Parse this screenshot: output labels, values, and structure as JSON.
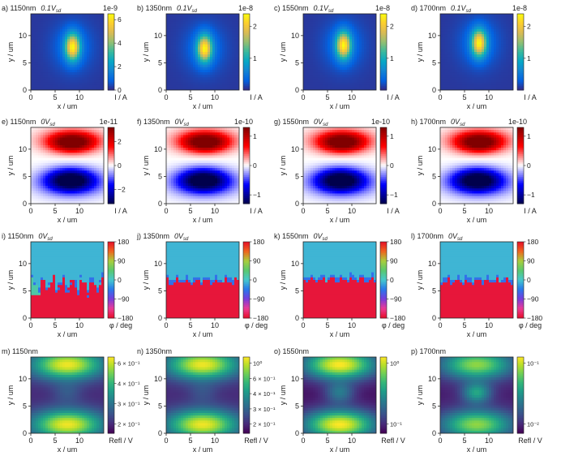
{
  "chart_data": {
    "type": "heatmap",
    "rows": [
      {
        "quantity": "photocurrent_magnitude",
        "colormap": "parula",
        "cbar_label": "I / A",
        "panels": [
          {
            "letter": "a)",
            "wavelength": "1150nm",
            "bias": "0.1V",
            "bias_sub": "sd",
            "exponent": "1e-9",
            "ticks": [
              "6",
              "4",
              "2",
              "0"
            ],
            "vmin": 0,
            "vmax": 6.5
          },
          {
            "letter": "b)",
            "wavelength": "1350nm",
            "bias": "0.1V",
            "bias_sub": "sd",
            "exponent": "1e-8",
            "ticks": [
              "2",
              "1"
            ],
            "vmin": 0,
            "vmax": 2.4
          },
          {
            "letter": "c)",
            "wavelength": "1550nm",
            "bias": "0.1V",
            "bias_sub": "sd",
            "exponent": "1e-8",
            "ticks": [
              "2",
              "1"
            ],
            "vmin": 0,
            "vmax": 2.4
          },
          {
            "letter": "d)",
            "wavelength": "1700nm",
            "bias": "0.1V",
            "bias_sub": "sd",
            "exponent": "1e-8",
            "ticks": [
              "2",
              "1"
            ],
            "vmin": 0,
            "vmax": 2.4
          }
        ]
      },
      {
        "quantity": "photocurrent_signed",
        "colormap": "seismic",
        "cbar_label": "I / A",
        "panels": [
          {
            "letter": "e)",
            "wavelength": "1150nm",
            "bias": "0V",
            "bias_sub": "sd",
            "exponent": "1e-11",
            "ticks": [
              "2",
              "0",
              "−2"
            ],
            "vmin": -3.2,
            "vmax": 3.2
          },
          {
            "letter": "f)",
            "wavelength": "1350nm",
            "bias": "0V",
            "bias_sub": "sd",
            "exponent": "1e-10",
            "ticks": [
              "1",
              "0",
              "−1"
            ],
            "vmin": -1.3,
            "vmax": 1.3
          },
          {
            "letter": "g)",
            "wavelength": "1550nm",
            "bias": "0V",
            "bias_sub": "sd",
            "exponent": "1e-10",
            "ticks": [
              "1",
              "0",
              "−1"
            ],
            "vmin": -1.3,
            "vmax": 1.3
          },
          {
            "letter": "h)",
            "wavelength": "1700nm",
            "bias": "0V",
            "bias_sub": "sd",
            "exponent": "1e-10",
            "ticks": [
              "1",
              "0",
              "−1"
            ],
            "vmin": -1.3,
            "vmax": 1.3
          }
        ]
      },
      {
        "quantity": "phase",
        "colormap": "phase",
        "cbar_label": "φ / deg",
        "panels": [
          {
            "letter": "i)",
            "wavelength": "1150nm",
            "bias": "0V",
            "bias_sub": "sd",
            "exponent": "",
            "ticks": [
              "180",
              "90",
              "0",
              "−90",
              "−180"
            ],
            "vmin": -180,
            "vmax": 180
          },
          {
            "letter": "j)",
            "wavelength": "1350nm",
            "bias": "0V",
            "bias_sub": "sd",
            "exponent": "",
            "ticks": [
              "180",
              "90",
              "0",
              "−90",
              "−180"
            ],
            "vmin": -180,
            "vmax": 180
          },
          {
            "letter": "k)",
            "wavelength": "1550nm",
            "bias": "0V",
            "bias_sub": "sd",
            "exponent": "",
            "ticks": [
              "180",
              "90",
              "0",
              "−90",
              "−180"
            ],
            "vmin": -180,
            "vmax": 180
          },
          {
            "letter": "l)",
            "wavelength": "1700nm",
            "bias": "0V",
            "bias_sub": "sd",
            "exponent": "",
            "ticks": [
              "180",
              "90",
              "0",
              "−90",
              "−180"
            ],
            "vmin": -180,
            "vmax": 180
          }
        ]
      },
      {
        "quantity": "reflection",
        "colormap": "viridis",
        "cbar_label": "Refl / V",
        "panels": [
          {
            "letter": "m)",
            "wavelength": "1150nm",
            "bias": "",
            "bias_sub": "",
            "exponent": "",
            "ticks": [
              "6 × 10⁻¹",
              "4 × 10⁻¹",
              "3 × 10⁻¹",
              "2 × 10⁻¹"
            ],
            "vmin": 0.15,
            "vmax": 0.7
          },
          {
            "letter": "n)",
            "wavelength": "1350nm",
            "bias": "",
            "bias_sub": "",
            "exponent": "",
            "ticks": [
              "10⁰",
              "6 × 10⁻¹",
              "4 × 10⁻¹",
              "3 × 10⁻¹",
              "2 × 10⁻¹"
            ],
            "vmin": 0.15,
            "vmax": 1.3
          },
          {
            "letter": "o)",
            "wavelength": "1550nm",
            "bias": "",
            "bias_sub": "",
            "exponent": "",
            "ticks": [
              "10⁰",
              "10⁻¹"
            ],
            "vmin": 0.08,
            "vmax": 2.0
          },
          {
            "letter": "p)",
            "wavelength": "1700nm",
            "bias": "",
            "bias_sub": "",
            "exponent": "",
            "ticks": [
              "10⁻¹",
              "10⁻²"
            ],
            "vmin": 0.005,
            "vmax": 0.2
          }
        ]
      }
    ],
    "x_axis": {
      "label": "x / um",
      "ticks": [
        "0",
        "5",
        "10"
      ],
      "range": [
        0,
        15
      ]
    },
    "y_axis": {
      "label": "y / um",
      "ticks": [
        "0",
        "5",
        "10"
      ],
      "range": [
        0,
        14
      ]
    }
  }
}
